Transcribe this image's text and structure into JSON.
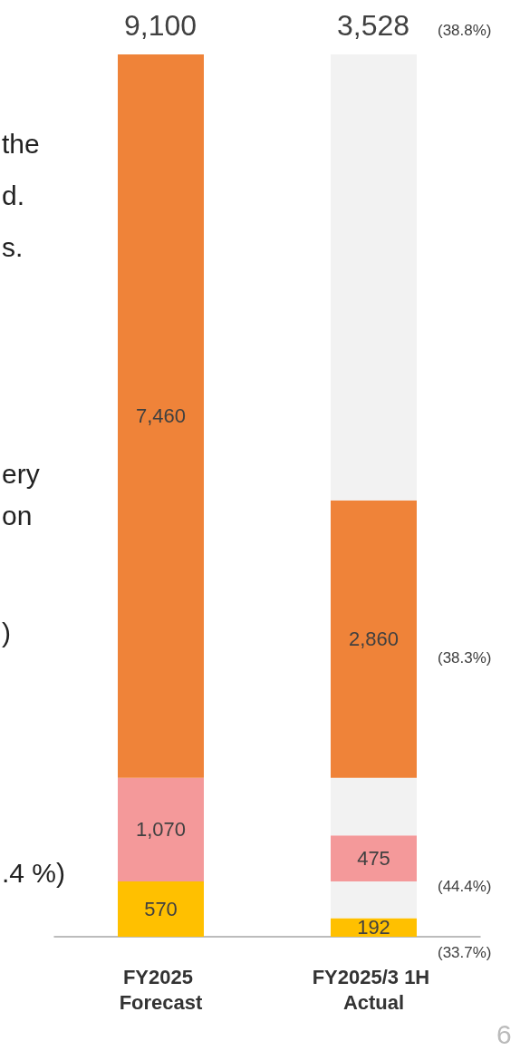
{
  "chart_data": {
    "type": "bar",
    "stacked": true,
    "categories": [
      "FY2025 Forecast",
      "FY2025/3 1H Actual"
    ],
    "series": [
      {
        "color": "#ffc000",
        "values": [
          570,
          192
        ],
        "value_labels": [
          "570",
          "192"
        ]
      },
      {
        "color": "#f2f2f2",
        "values": [
          null,
          378
        ]
      },
      {
        "color": "#f4999a",
        "values": [
          1070,
          475
        ],
        "value_labels": [
          "1,070",
          "475"
        ]
      },
      {
        "color": "#f2f2f2",
        "values": [
          null,
          595
        ]
      },
      {
        "color": "#ef8339",
        "values": [
          7460,
          2860
        ],
        "value_labels": [
          "7,460",
          "2,860"
        ]
      },
      {
        "color": "#f2f2f2",
        "values": [
          null,
          4600
        ]
      }
    ],
    "ylim": [
      0,
      9100
    ],
    "tick_labels": "x",
    "annotations": [
      "9,100",
      "3,528",
      "(38.8%)",
      "(38.3%)",
      "(44.4%)",
      "(33.7%)",
      "the",
      "d.",
      "s.",
      "ery",
      "on",
      ")",
      ".4 %)",
      "6"
    ]
  }
}
